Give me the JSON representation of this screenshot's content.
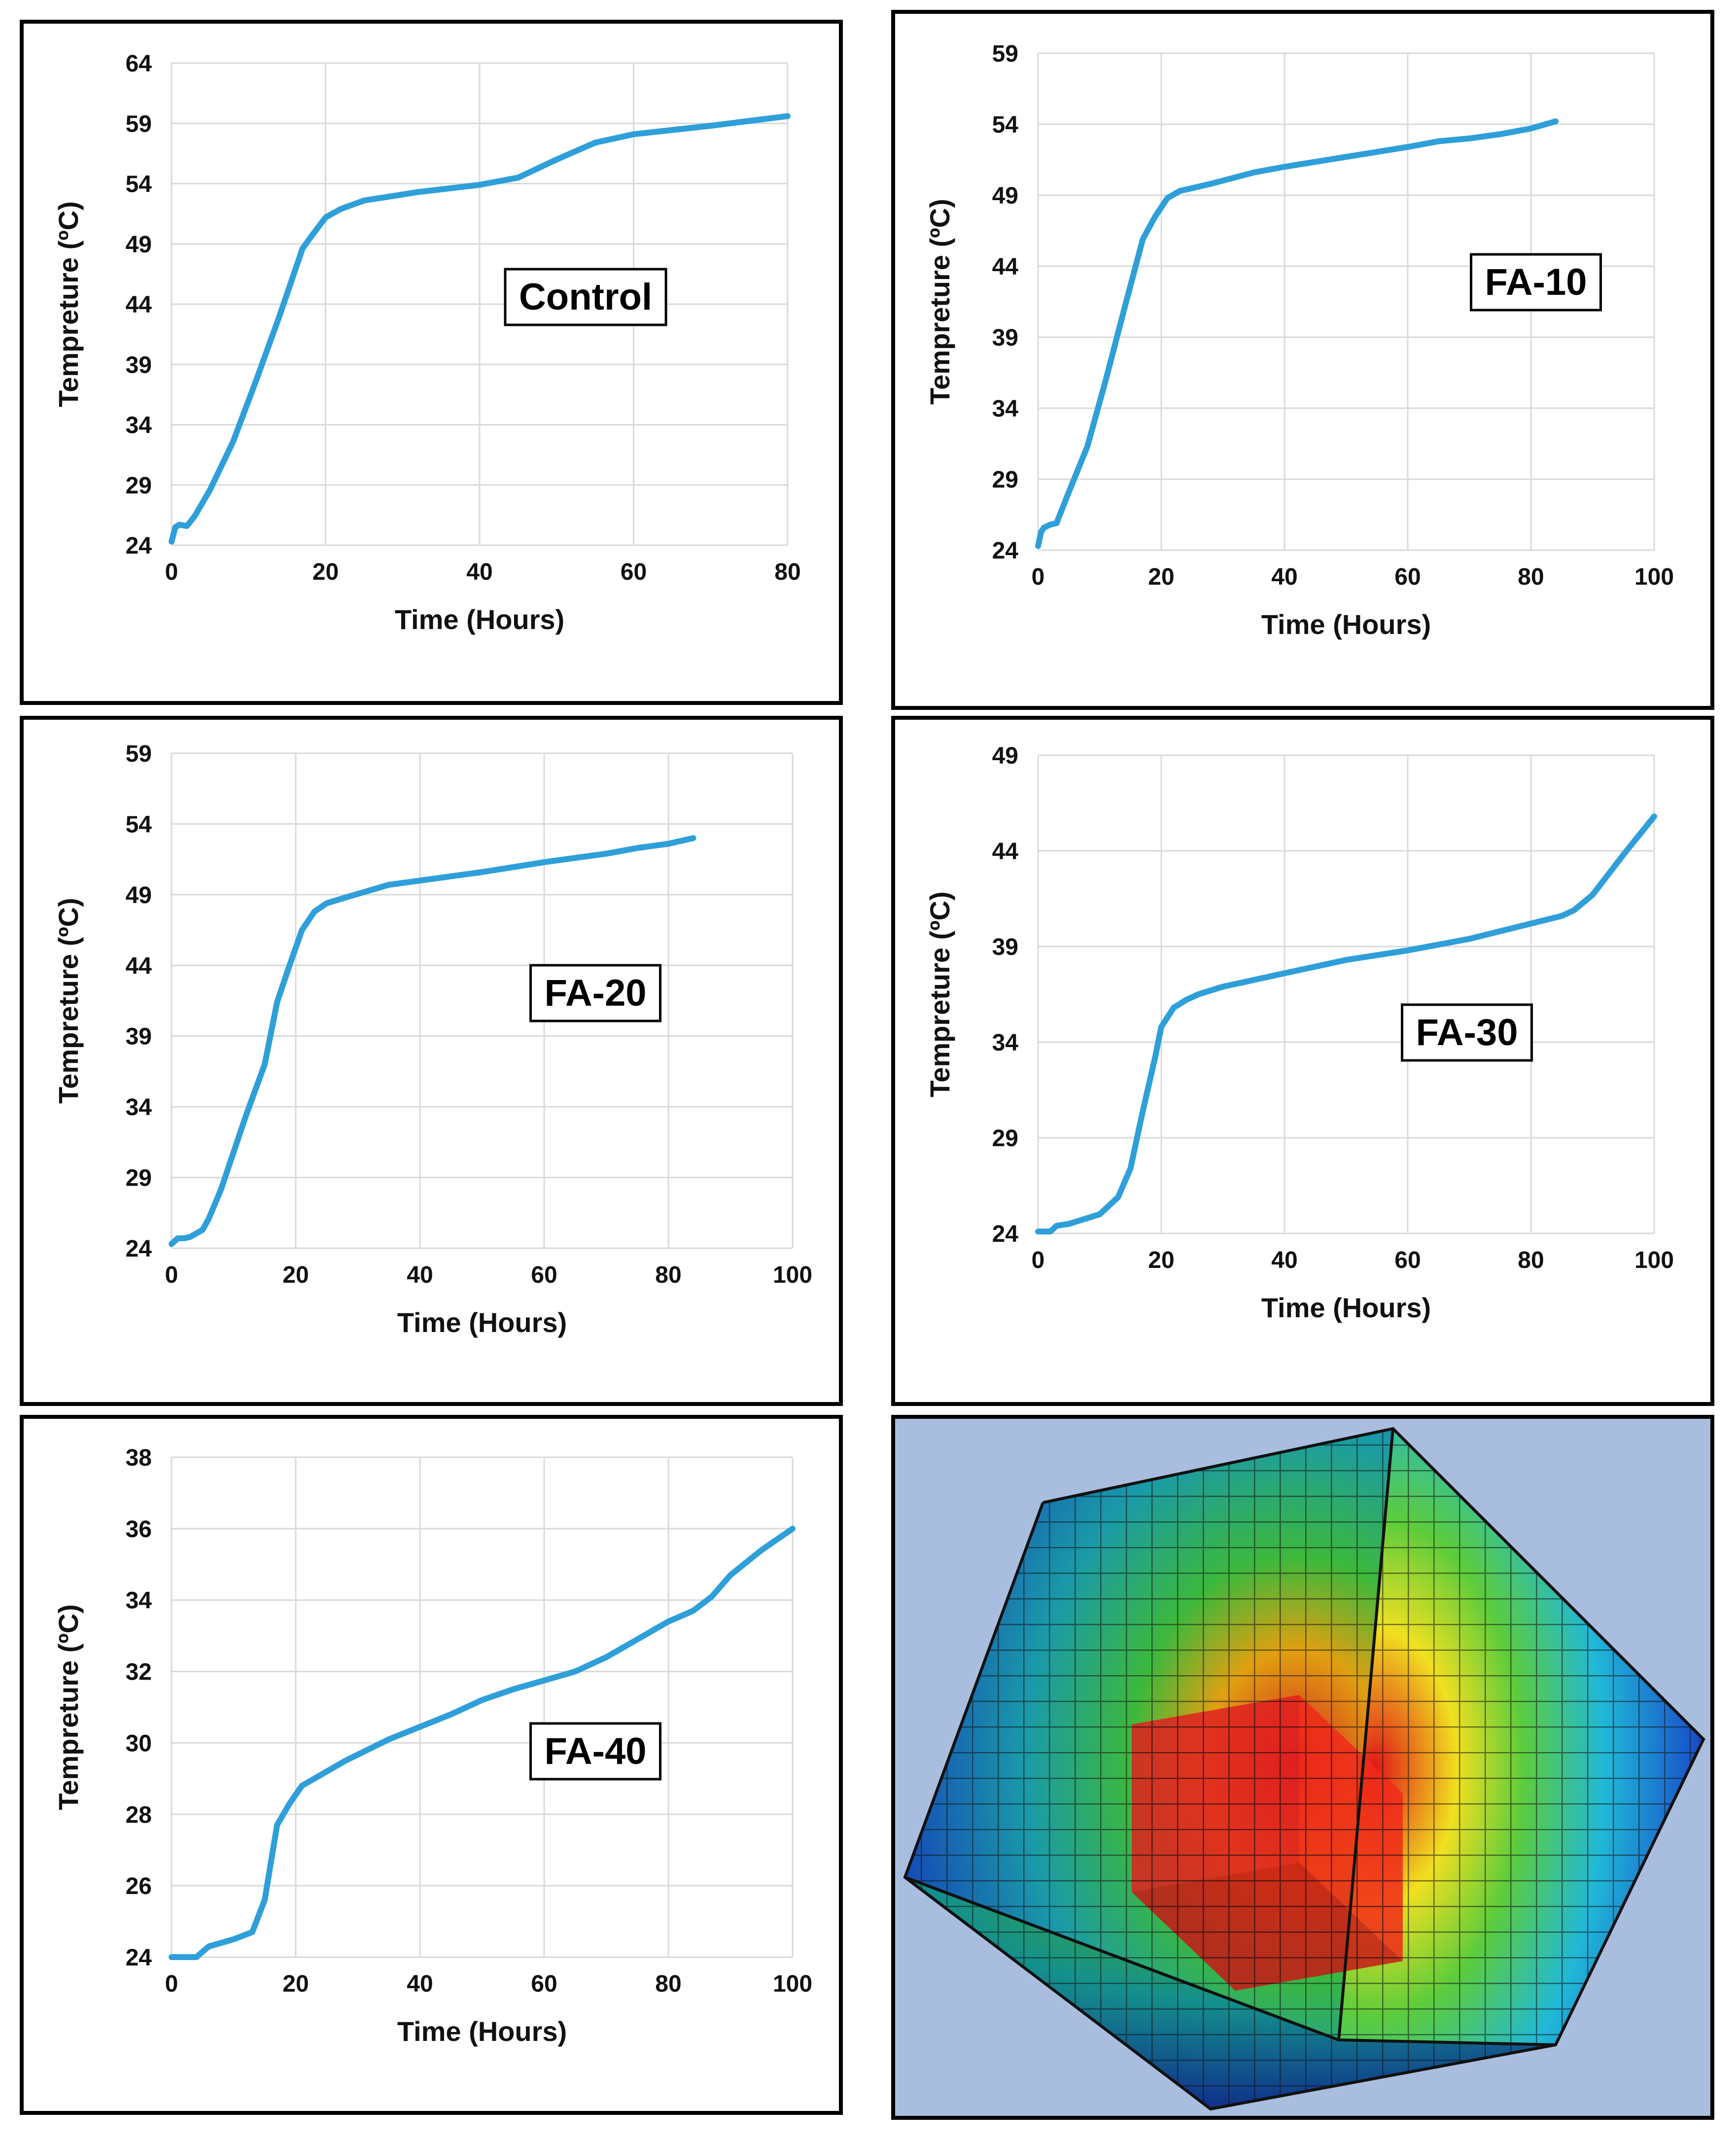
{
  "figure": {
    "series_color": "#2e9fd9"
  },
  "chart_data": [
    {
      "type": "line",
      "panel_label": "Control",
      "xlabel": "Time (Hours)",
      "ylabel": "Tempreture (ºC)",
      "xlim": [
        0,
        80
      ],
      "ylim": [
        24,
        64
      ],
      "xticks": [
        0,
        20,
        40,
        60,
        80
      ],
      "yticks": [
        24,
        29,
        34,
        39,
        44,
        49,
        54,
        59,
        64
      ],
      "grid": true,
      "series": [
        {
          "name": "Control",
          "x": [
            0,
            0.5,
            1,
            2,
            3,
            5,
            8,
            11,
            14,
            17,
            18,
            20,
            22,
            25,
            28,
            32,
            36,
            40,
            45,
            50,
            55,
            60,
            70,
            80
          ],
          "y": [
            24.3,
            25.5,
            25.7,
            25.6,
            26.4,
            28.6,
            32.6,
            37.7,
            43,
            48.6,
            49.5,
            51.2,
            51.9,
            52.6,
            52.9,
            53.3,
            53.6,
            53.9,
            54.5,
            56,
            57.4,
            58.1,
            58.8,
            59.6
          ]
        }
      ]
    },
    {
      "type": "line",
      "panel_label": "FA-10",
      "xlabel": "Time (Hours)",
      "ylabel": "Tempreture (ºC)",
      "xlim": [
        0,
        100
      ],
      "ylim": [
        24,
        59
      ],
      "xticks": [
        0,
        20,
        40,
        60,
        80,
        100
      ],
      "yticks": [
        24,
        29,
        34,
        39,
        44,
        49,
        54,
        59
      ],
      "grid": true,
      "series": [
        {
          "name": "FA-10",
          "x": [
            0,
            0.5,
            1,
            2,
            3,
            5,
            8,
            11,
            14,
            17,
            19,
            21,
            23,
            28,
            35,
            40,
            50,
            60,
            65,
            70,
            75,
            80,
            84
          ],
          "y": [
            24.3,
            25.3,
            25.6,
            25.8,
            25.9,
            28.1,
            31.3,
            36,
            41,
            45.9,
            47.5,
            48.8,
            49.3,
            49.8,
            50.6,
            51,
            51.7,
            52.4,
            52.8,
            53,
            53.3,
            53.7,
            54.2
          ]
        }
      ]
    },
    {
      "type": "line",
      "panel_label": "FA-20",
      "xlabel": "Time (Hours)",
      "ylabel": "Tempreture (ºC)",
      "xlim": [
        0,
        100
      ],
      "ylim": [
        24,
        59
      ],
      "xticks": [
        0,
        20,
        40,
        60,
        80,
        100
      ],
      "yticks": [
        24,
        29,
        34,
        39,
        44,
        49,
        54,
        59
      ],
      "grid": true,
      "series": [
        {
          "name": "FA-20",
          "x": [
            0,
            1,
            2,
            3,
            5,
            6,
            8,
            10,
            12,
            15,
            17,
            19,
            21,
            23,
            25,
            28,
            35,
            45,
            50,
            60,
            70,
            75,
            80,
            84
          ],
          "y": [
            24.3,
            24.7,
            24.7,
            24.8,
            25.3,
            26.1,
            28.2,
            30.8,
            33.4,
            37,
            41.4,
            44,
            46.5,
            47.8,
            48.4,
            48.8,
            49.7,
            50.3,
            50.6,
            51.3,
            51.9,
            52.3,
            52.6,
            53
          ]
        }
      ]
    },
    {
      "type": "line",
      "panel_label": "FA-30",
      "xlabel": "Time (Hours)",
      "ylabel": "Tempreture (ºC)",
      "xlim": [
        0,
        100
      ],
      "ylim": [
        24,
        49
      ],
      "xticks": [
        0,
        20,
        40,
        60,
        80,
        100
      ],
      "yticks": [
        24,
        29,
        34,
        39,
        44,
        49
      ],
      "grid": true,
      "series": [
        {
          "name": "FA-30",
          "x": [
            0,
            2,
            3,
            5,
            8,
            10,
            13,
            15,
            17,
            19,
            20,
            22,
            24,
            26,
            30,
            40,
            50,
            60,
            70,
            80,
            85,
            87,
            90,
            95,
            100
          ],
          "y": [
            24.1,
            24.1,
            24.4,
            24.5,
            24.8,
            25,
            25.9,
            27.4,
            30.4,
            33.2,
            34.8,
            35.8,
            36.2,
            36.5,
            36.9,
            37.6,
            38.3,
            38.8,
            39.4,
            40.2,
            40.6,
            40.9,
            41.7,
            43.8,
            45.8
          ]
        }
      ]
    },
    {
      "type": "line",
      "panel_label": "FA-40",
      "xlabel": "Time (Hours)",
      "ylabel": "Tempreture (ºC)",
      "xlim": [
        0,
        100
      ],
      "ylim": [
        24,
        38
      ],
      "xticks": [
        0,
        20,
        40,
        60,
        80,
        100
      ],
      "yticks": [
        24,
        26,
        28,
        30,
        32,
        34,
        36,
        38
      ],
      "grid": true,
      "series": [
        {
          "name": "FA-40",
          "x": [
            0,
            4,
            6,
            10,
            13,
            15,
            17,
            19,
            21,
            24,
            26,
            28,
            35,
            45,
            50,
            55,
            65,
            70,
            75,
            80,
            84,
            87,
            90,
            95,
            100
          ],
          "y": [
            24,
            24,
            24.3,
            24.5,
            24.7,
            25.6,
            27.7,
            28.3,
            28.8,
            29.1,
            29.3,
            29.5,
            30.1,
            30.8,
            31.2,
            31.5,
            32,
            32.4,
            32.9,
            33.4,
            33.7,
            34.1,
            34.7,
            35.4,
            36
          ]
        }
      ]
    }
  ],
  "mesh_image": {
    "icon": "fem-temperature-mesh-cube"
  }
}
